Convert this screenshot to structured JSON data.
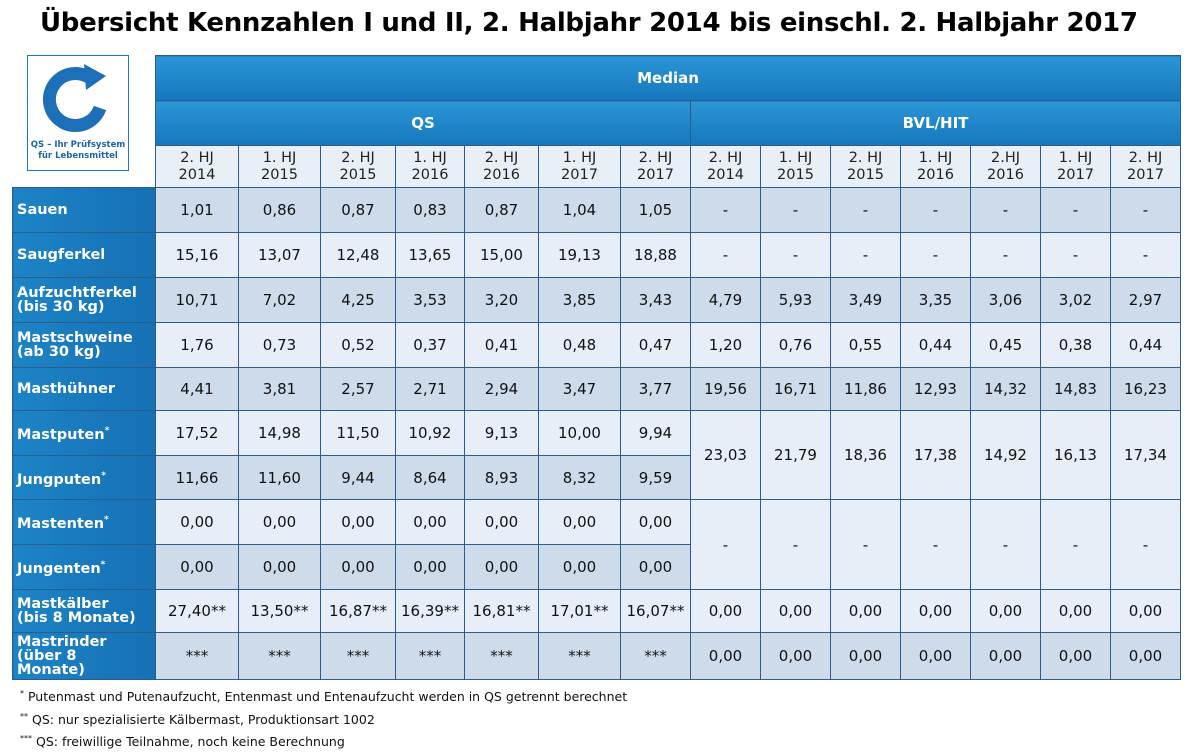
{
  "title": "Übersicht Kennzahlen I und II, 2. Halbjahr 2014 bis einschl. 2. Halbjahr 2017",
  "logo": {
    "lines": [
      "QS – Ihr Prüfsystem",
      "für Lebensmittel"
    ]
  },
  "table": {
    "header": "Median",
    "groups": [
      "QS",
      "BVL/HIT"
    ],
    "columns": [
      [
        "2. HJ",
        "2014"
      ],
      [
        "1. HJ",
        "2015"
      ],
      [
        "2. HJ",
        "2015"
      ],
      [
        "1. HJ",
        "2016"
      ],
      [
        "2. HJ",
        "2016"
      ],
      [
        "1. HJ",
        "2017"
      ],
      [
        "2. HJ",
        "2017"
      ],
      [
        "2. HJ",
        "2014"
      ],
      [
        "1. HJ",
        "2015"
      ],
      [
        "2. HJ",
        "2015"
      ],
      [
        "1. HJ",
        "2016"
      ],
      [
        "2.HJ",
        "2016"
      ],
      [
        "1. HJ",
        "2017"
      ],
      [
        "2. HJ",
        "2017"
      ]
    ],
    "rows": [
      {
        "label": [
          "Sauen"
        ],
        "qs": [
          "1,01",
          "0,86",
          "0,87",
          "0,83",
          "0,87",
          "1,04",
          "1,05"
        ],
        "bvl": [
          "-",
          "-",
          "-",
          "-",
          "-",
          "-",
          "-"
        ]
      },
      {
        "label": [
          "Saugferkel"
        ],
        "qs": [
          "15,16",
          "13,07",
          "12,48",
          "13,65",
          "15,00",
          "19,13",
          "18,88"
        ],
        "bvl": [
          "-",
          "-",
          "-",
          "-",
          "-",
          "-",
          "-"
        ]
      },
      {
        "label": [
          "Aufzuchtferkel",
          "(bis 30 kg)"
        ],
        "qs": [
          "10,71",
          "7,02",
          "4,25",
          "3,53",
          "3,20",
          "3,85",
          "3,43"
        ],
        "bvl": [
          "4,79",
          "5,93",
          "3,49",
          "3,35",
          "3,06",
          "3,02",
          "2,97"
        ]
      },
      {
        "label": [
          "Mastschweine",
          "(ab 30 kg)"
        ],
        "qs": [
          "1,76",
          "0,73",
          "0,52",
          "0,37",
          "0,41",
          "0,48",
          "0,47"
        ],
        "bvl": [
          "1,20",
          "0,76",
          "0,55",
          "0,44",
          "0,45",
          "0,38",
          "0,44"
        ]
      },
      {
        "label": [
          "Masthühner"
        ],
        "qs": [
          "4,41",
          "3,81",
          "2,57",
          "2,71",
          "2,94",
          "3,47",
          "3,77"
        ],
        "bvl": [
          "19,56",
          "16,71",
          "11,86",
          "12,93",
          "14,32",
          "14,83",
          "16,23"
        ]
      },
      {
        "label": [
          "Mastputen"
        ],
        "note": "*",
        "qs": [
          "17,52",
          "14,98",
          "11,50",
          "10,92",
          "9,13",
          "10,00",
          "9,94"
        ],
        "bvl": [
          "23,03",
          "21,79",
          "18,36",
          "17,38",
          "14,92",
          "16,13",
          "17,34"
        ]
      },
      {
        "label": [
          "Jungputen"
        ],
        "note": "*",
        "qs": [
          "11,66",
          "11,60",
          "9,44",
          "8,64",
          "8,93",
          "8,32",
          "9,59"
        ]
      },
      {
        "label": [
          "Mastenten"
        ],
        "note": "*",
        "qs": [
          "0,00",
          "0,00",
          "0,00",
          "0,00",
          "0,00",
          "0,00",
          "0,00"
        ],
        "bvl": [
          "-",
          "-",
          "-",
          "-",
          "-",
          "-",
          "-"
        ]
      },
      {
        "label": [
          "Jungenten"
        ],
        "note": "*",
        "qs": [
          "0,00",
          "0,00",
          "0,00",
          "0,00",
          "0,00",
          "0,00",
          "0,00"
        ]
      },
      {
        "label": [
          "Mastkälber",
          "(bis 8 Monate)"
        ],
        "qs": [
          "27,40**",
          "13,50**",
          "16,87**",
          "16,39**",
          "16,81**",
          "17,01**",
          "16,07**"
        ],
        "bvl": [
          "0,00",
          "0,00",
          "0,00",
          "0,00",
          "0,00",
          "0,00",
          "0,00"
        ]
      },
      {
        "label": [
          "Mastrinder",
          "(über 8",
          "Monate)"
        ],
        "qs": [
          "***",
          "***",
          "***",
          "***",
          "***",
          "***",
          "***"
        ],
        "bvl": [
          "0,00",
          "0,00",
          "0,00",
          "0,00",
          "0,00",
          "0,00",
          "0,00"
        ]
      }
    ]
  },
  "footnotes": [
    {
      "mark": "*",
      "text": "Putenmast und Putenaufzucht, Entenmast und Entenaufzucht werden in QS getrennt berechnet"
    },
    {
      "mark": "**",
      "text": "QS: nur spezialisierte Kälbermast, Produktionsart 1002"
    },
    {
      "mark": "***",
      "text": "QS: freiwillige Teilnahme, noch keine Berechnung"
    }
  ]
}
